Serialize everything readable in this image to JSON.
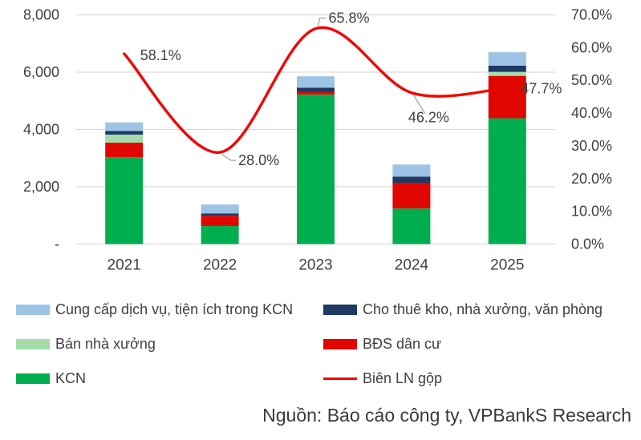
{
  "chart_data": {
    "type": "combo-stacked-bar-line",
    "categories": [
      "2021",
      "2022",
      "2023",
      "2024",
      "2025"
    ],
    "bar_series": [
      {
        "name": "KCN",
        "color": "#00AE4F",
        "values": [
          3030,
          630,
          5220,
          1240,
          4390
        ]
      },
      {
        "name": "BĐS dân cư",
        "color": "#E10600",
        "values": [
          510,
          355,
          95,
          900,
          1480
        ]
      },
      {
        "name": "Bán nhà xưởng",
        "color": "#A5DCAA",
        "values": [
          280,
          0,
          0,
          0,
          140
        ]
      },
      {
        "name": "Cho thuê kho, nhà xưởng, văn phòng",
        "color": "#1F3864",
        "values": [
          125,
          85,
          140,
          215,
          215
        ]
      },
      {
        "name": "Cung cấp dịch vụ, tiện ích trong KCN",
        "color": "#9DC3E6",
        "values": [
          300,
          310,
          400,
          420,
          470
        ]
      }
    ],
    "line_series": {
      "name": "Biên LN gộp",
      "color": "#F60000",
      "values": [
        58.1,
        28.0,
        65.8,
        46.2,
        47.7
      ],
      "labels": [
        "58.1%",
        "28.0%",
        "65.8%",
        "46.2%",
        "47.7%"
      ]
    },
    "left_axis": {
      "min": 0,
      "max": 8000,
      "step": 2000,
      "tick_labels": [
        "-",
        "2,000",
        "4,000",
        "6,000",
        "8,000"
      ]
    },
    "right_axis": {
      "min": 0,
      "max": 70,
      "step": 10,
      "tick_labels": [
        "0.0%",
        "10.0%",
        "20.0%",
        "30.0%",
        "40.0%",
        "50.0%",
        "60.0%",
        "70.0%"
      ]
    },
    "grid": "horizontal",
    "gridline_color": "#D9D9D9",
    "annotation_leader_color": "#A6A6A6",
    "legend_position": "bottom"
  },
  "legend": {
    "items": [
      {
        "label": "Cung cấp dịch vụ, tiện ích trong KCN",
        "color": "#9DC3E6",
        "type": "rect"
      },
      {
        "label": "Cho thuê kho, nhà xưởng, văn phòng",
        "color": "#1F3864",
        "type": "rect"
      },
      {
        "label": "Bán nhà xưởng",
        "color": "#A5DCAA",
        "type": "rect"
      },
      {
        "label": "BĐS dân cư",
        "color": "#E10600",
        "type": "rect"
      },
      {
        "label": "KCN",
        "color": "#00AE4F",
        "type": "rect"
      },
      {
        "label": "Biên LN gộp",
        "color": "#F60000",
        "type": "line"
      }
    ]
  },
  "source": {
    "text": "Nguồn: Báo cáo công ty, VPBankS Research"
  }
}
